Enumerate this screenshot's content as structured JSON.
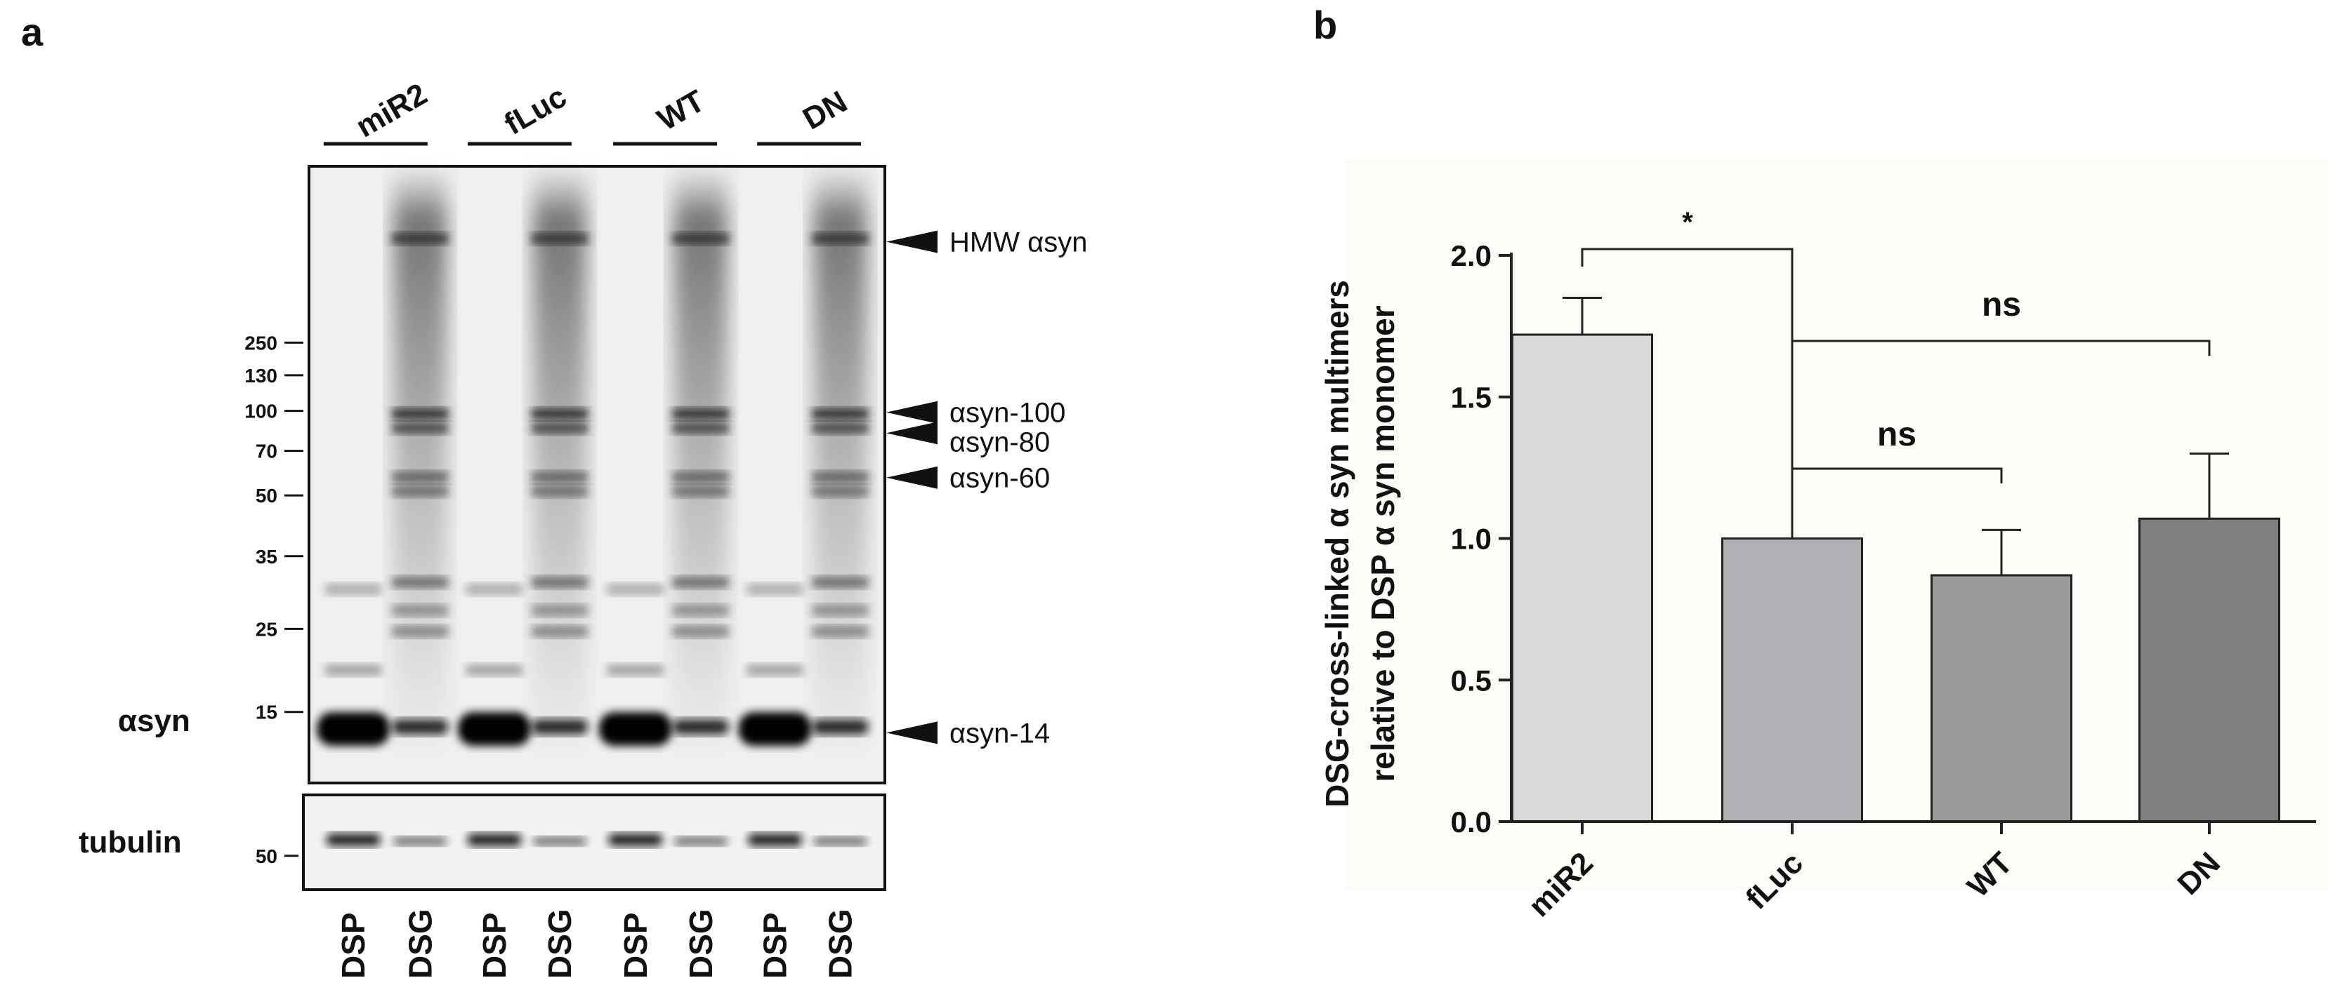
{
  "panel_a": {
    "label": "a",
    "groups": [
      "miR2",
      "fLuc",
      "WT",
      "DN"
    ],
    "mw_markers": [
      "250",
      "130",
      "100",
      "70",
      "50",
      "35",
      "25",
      "15"
    ],
    "blot_label": "αsyn",
    "loading_label": "tubulin",
    "loading_marker": "50",
    "band_labels": [
      "HMW αsyn",
      "αsyn-100",
      "αsyn-80",
      "αsyn-60",
      "αsyn-14"
    ],
    "lanes": [
      "DSP",
      "DSG",
      "DSP",
      "DSG",
      "DSP",
      "DSG",
      "DSP",
      "DSG"
    ]
  },
  "chart_data": {
    "type": "bar",
    "panel_label": "b",
    "y_label": [
      "DSG-cross-linked α syn multimers",
      "relative to DSP α syn monomer"
    ],
    "categories": [
      "miR2",
      "fLuc",
      "WT",
      "DN"
    ],
    "values": [
      1.72,
      1.0,
      0.87,
      1.07
    ],
    "errors": [
      0.13,
      0,
      0.16,
      0.23
    ],
    "colors": [
      "#d9d9d9",
      "#b1b0b5",
      "#9b9b9b",
      "#7f7f7f"
    ],
    "ylim": [
      0,
      2.0
    ],
    "yticks": [
      {
        "value": 0,
        "label": "0.0"
      },
      {
        "value": 0.5,
        "label": "0.5"
      },
      {
        "value": 1.0,
        "label": "1.0"
      },
      {
        "value": 1.5,
        "label": "1.5"
      },
      {
        "value": 2.0,
        "label": "2.0"
      }
    ],
    "annotations": [
      "*",
      "ns",
      "ns"
    ]
  }
}
